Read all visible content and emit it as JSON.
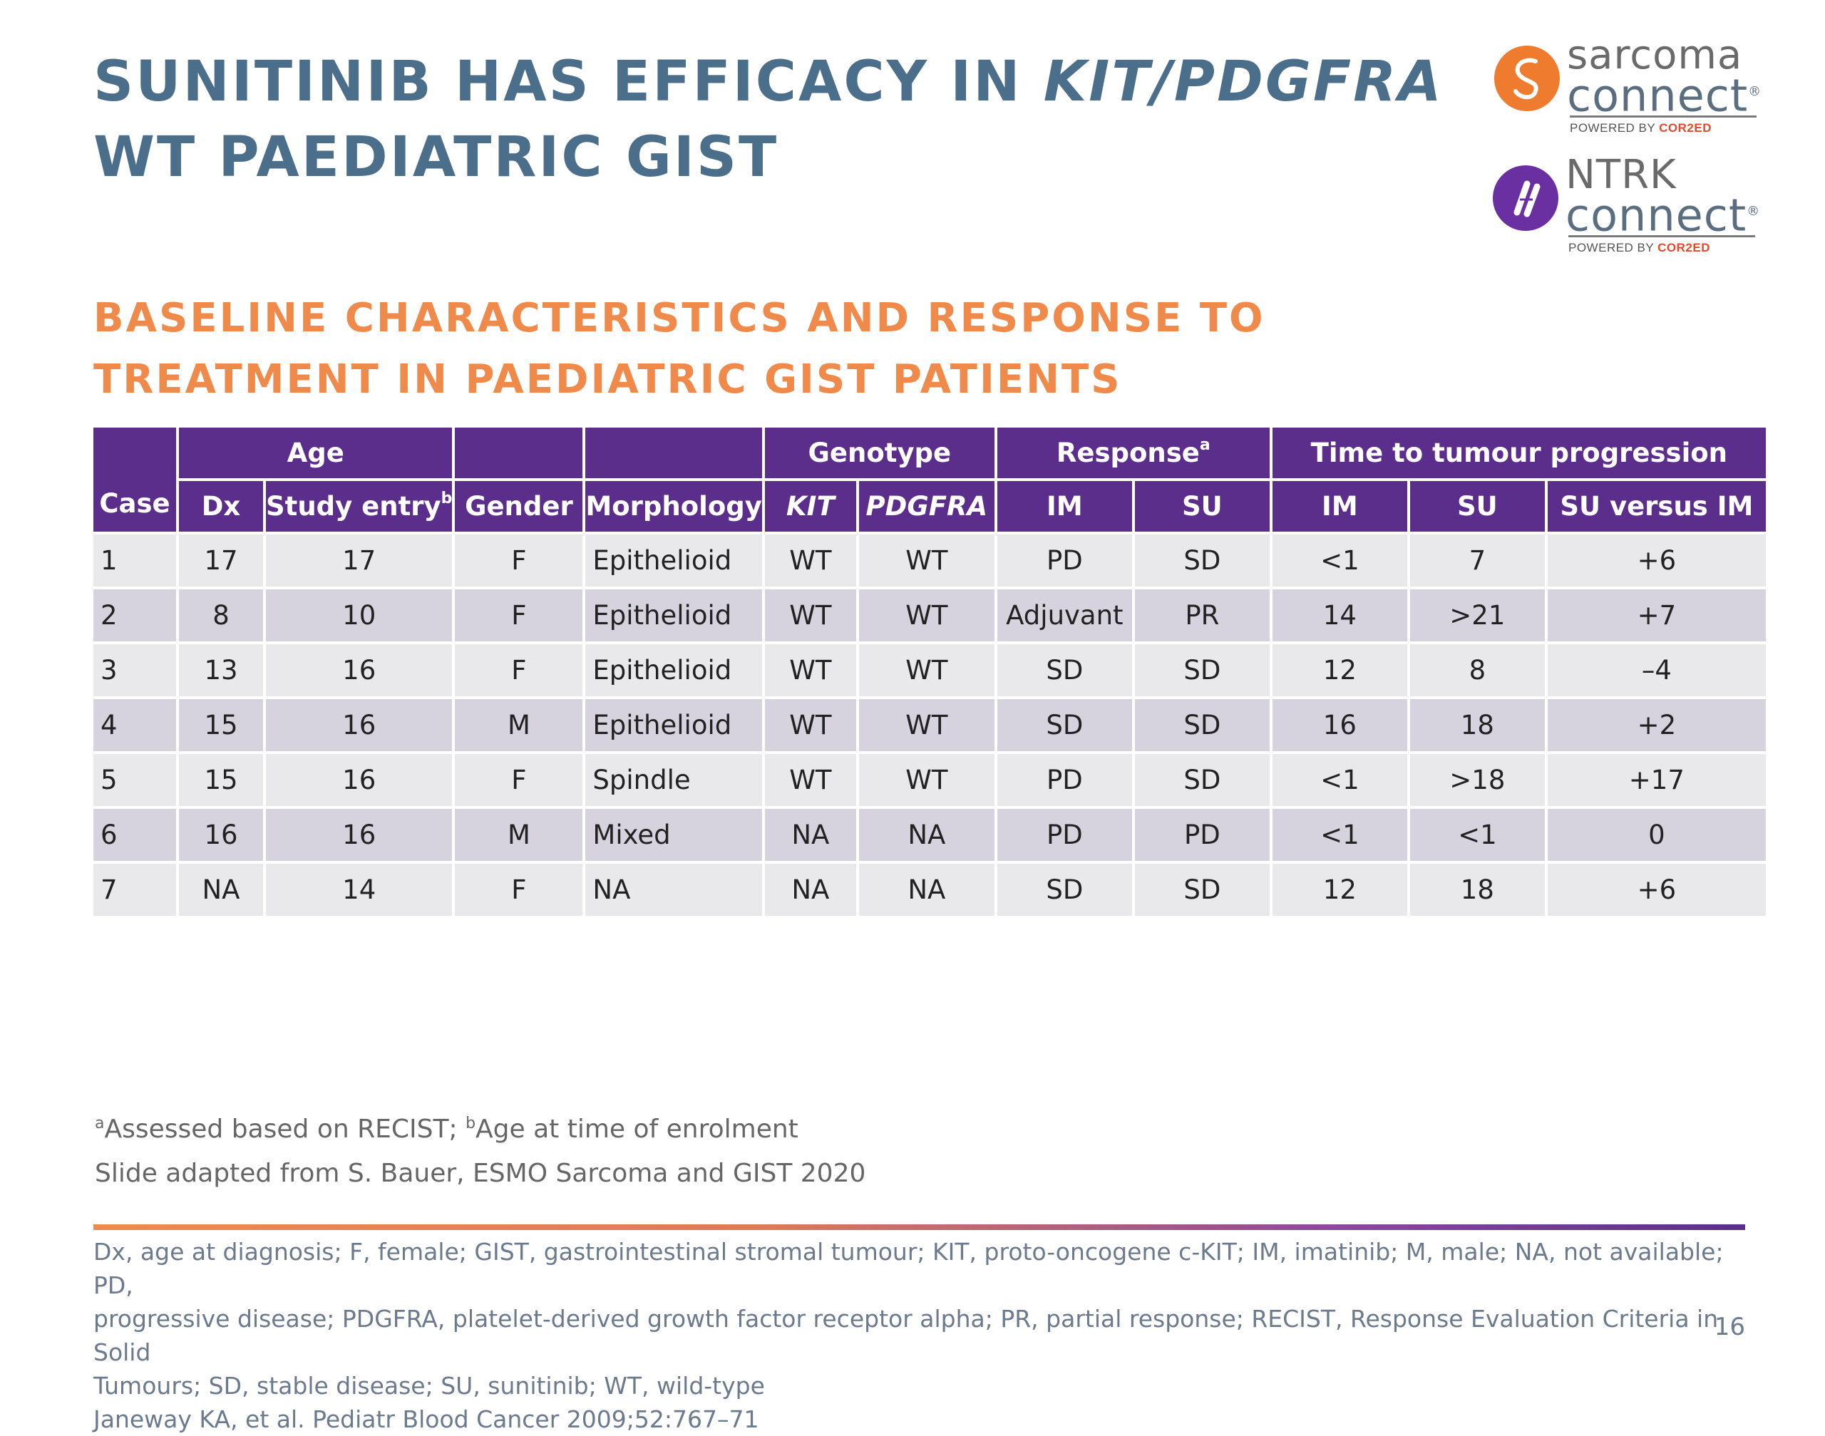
{
  "slide": {
    "title_part1": "SUNITINIB HAS EFFICACY IN ",
    "title_italic": "KIT/PDGFRA",
    "title_line2": "WT PAEDIATRIC GIST",
    "subtitle_line1": "BASELINE CHARACTERISTICS AND RESPONSE TO",
    "subtitle_line2": "TREATMENT IN PAEDIATRIC GIST PATIENTS",
    "page_number": "16"
  },
  "logos": {
    "sarcoma": {
      "word1": "sarcoma",
      "word2": "connect",
      "reg": "®",
      "powered_prefix": "POWERED BY ",
      "powered_brand": "COR2ED"
    },
    "ntrk": {
      "word1": "NTRK",
      "word2": "connect",
      "reg": "®",
      "powered_prefix": "POWERED BY ",
      "powered_brand": "COR2ED"
    }
  },
  "table": {
    "group_headers": {
      "age": "Age",
      "genotype": "Genotype",
      "response": "Response",
      "response_sup": "a",
      "time": "Time to tumour progression"
    },
    "headers": {
      "case": "Case",
      "dx": "Dx",
      "study_entry": "Study entry",
      "study_entry_sup": "b",
      "gender": "Gender",
      "morphology": "Morphology",
      "kit": "KIT",
      "pdgfra": "PDGFRA",
      "resp_im": "IM",
      "resp_su": "SU",
      "ttp_im": "IM",
      "ttp_su": "SU",
      "ttp_su_vs_im": "SU versus IM"
    },
    "rows": [
      [
        "1",
        "17",
        "17",
        "F",
        "Epithelioid",
        "WT",
        "WT",
        "PD",
        "SD",
        "<1",
        "7",
        "+6"
      ],
      [
        "2",
        "8",
        "10",
        "F",
        "Epithelioid",
        "WT",
        "WT",
        "Adjuvant",
        "PR",
        "14",
        ">21",
        "+7"
      ],
      [
        "3",
        "13",
        "16",
        "F",
        "Epithelioid",
        "WT",
        "WT",
        "SD",
        "SD",
        "12",
        "8",
        "–4"
      ],
      [
        "4",
        "15",
        "16",
        "M",
        "Epithelioid",
        "WT",
        "WT",
        "SD",
        "SD",
        "16",
        "18",
        "+2"
      ],
      [
        "5",
        "15",
        "16",
        "F",
        "Spindle",
        "WT",
        "WT",
        "PD",
        "SD",
        "<1",
        ">18",
        "+17"
      ],
      [
        "6",
        "16",
        "16",
        "M",
        "Mixed",
        "NA",
        "NA",
        "PD",
        "PD",
        "<1",
        "<1",
        "0"
      ],
      [
        "7",
        "NA",
        "14",
        "F",
        "NA",
        "NA",
        "NA",
        "SD",
        "SD",
        "12",
        "18",
        "+6"
      ]
    ]
  },
  "footnotes": {
    "sup_a": "a",
    "note_a": "Assessed based on RECIST; ",
    "sup_b": "b",
    "note_b": "Age at time of enrolment",
    "adapted": "Slide adapted from S. Bauer, ESMO Sarcoma and GIST 2020"
  },
  "abbreviations": {
    "line1": "Dx, age at diagnosis; F, female; GIST, gastrointestinal stromal tumour; KIT, proto-oncogene c-KIT; IM, imatinib; M, male; NA, not available; PD,",
    "line2": "progressive disease; PDGFRA, platelet-derived growth factor receptor alpha; PR, partial response; RECIST, Response Evaluation Criteria in Solid",
    "line3": "Tumours; SD, stable disease; SU, sunitinib; WT, wild-type",
    "reference": "Janeway KA, et al. Pediatr Blood Cancer 2009;52:767–71"
  },
  "colors": {
    "title": "#4b6f8a",
    "subtitle": "#ef8a4b",
    "header_bg": "#5b2e8c",
    "row_light": "#e9e9ec",
    "row_dark": "#d6d3de",
    "sarcoma_brand": "#ef7c2e",
    "ntrk_brand": "#6a2fa0"
  }
}
